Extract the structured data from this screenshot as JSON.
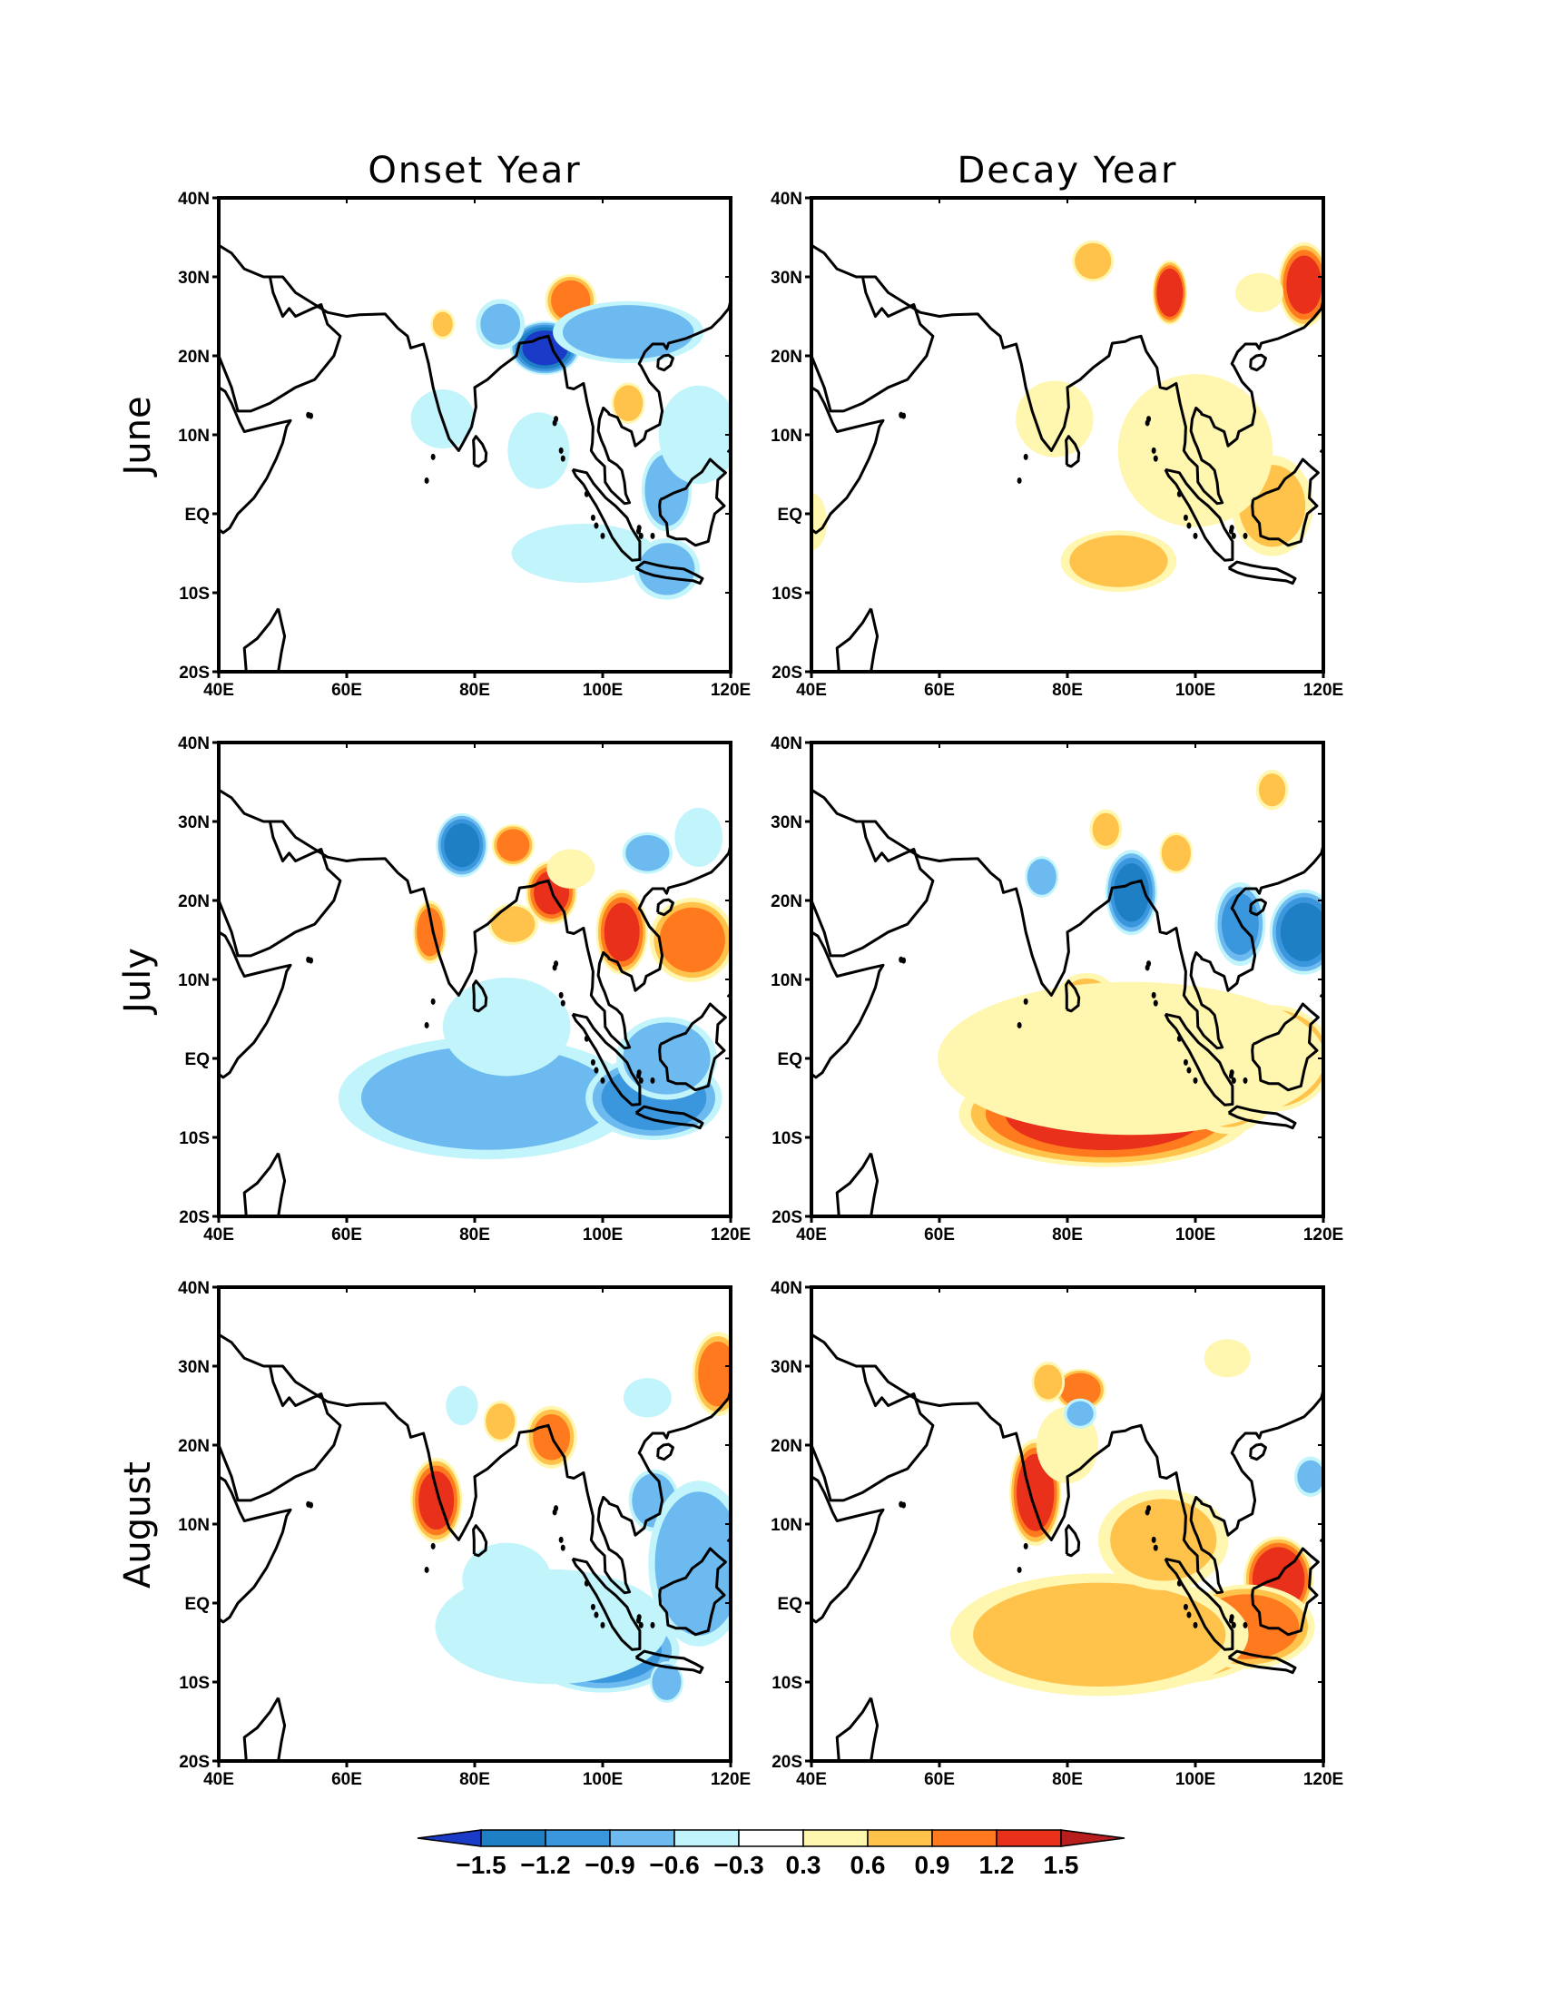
{
  "columns": [
    "Onset Year",
    "Decay Year"
  ],
  "rows": [
    "June",
    "July",
    "August"
  ],
  "lat_ticks": [
    "40N",
    "30N",
    "20N",
    "10N",
    "EQ",
    "10S",
    "20S"
  ],
  "lon_ticks": [
    "40E",
    "60E",
    "80E",
    "100E",
    "120E"
  ],
  "colorbar": {
    "levels": [
      "−1.5",
      "−1.2",
      "−0.9",
      "−0.6",
      "−0.3",
      "0.3",
      "0.6",
      "0.9",
      "1.2",
      "1.5"
    ],
    "colors": [
      "#1a3ac8",
      "#1e7fc4",
      "#3a96dd",
      "#6cbaf0",
      "#c2f4fb",
      "#ffffff",
      "#fff6b0",
      "#ffc24a",
      "#ff7a1e",
      "#e8301a",
      "#b81e1e"
    ]
  },
  "map": {
    "lon_range": [
      40,
      120
    ],
    "lat_range": [
      -20,
      40
    ],
    "anomalies": [
      {
        "panel": "onset-june",
        "blobs": [
          [
            95,
            27,
            3,
            2.5,
            1.0
          ],
          [
            91,
            21,
            4,
            2.5,
            -1.5
          ],
          [
            75,
            24,
            1.5,
            1.5,
            0.6
          ],
          [
            84,
            24,
            3,
            2.5,
            -0.6
          ],
          [
            104,
            23,
            9,
            3,
            -0.8
          ],
          [
            104,
            14,
            2,
            2,
            0.8
          ],
          [
            75,
            12,
            4,
            3,
            -0.5
          ],
          [
            90,
            8,
            4,
            4,
            -0.4
          ],
          [
            97,
            -5,
            9,
            3,
            -0.5
          ],
          [
            110,
            3,
            3,
            4,
            -0.8
          ],
          [
            110,
            -7,
            4,
            3,
            -0.7
          ],
          [
            115,
            10,
            5,
            5,
            -0.5
          ]
        ]
      },
      {
        "panel": "onset-july",
        "blobs": [
          [
            78,
            27,
            3,
            3,
            -1.2
          ],
          [
            86,
            27,
            2.5,
            2,
            1.0
          ],
          [
            73,
            16,
            2,
            3,
            1.0
          ],
          [
            92,
            21,
            3,
            3,
            1.2
          ],
          [
            86,
            17,
            3,
            2,
            0.8
          ],
          [
            103,
            16,
            3,
            4,
            1.2
          ],
          [
            114,
            15,
            5,
            4,
            1.0
          ],
          [
            107,
            26,
            3,
            2,
            -0.8
          ],
          [
            115,
            28,
            3,
            3,
            -0.5
          ],
          [
            82,
            -5,
            18,
            6,
            -0.7
          ],
          [
            85,
            4,
            8,
            5,
            -0.5
          ],
          [
            108,
            -5,
            8,
            4,
            -1.0
          ],
          [
            110,
            0,
            6,
            4,
            -0.8
          ],
          [
            95,
            24,
            3,
            2,
            0.5
          ]
        ]
      },
      {
        "panel": "onset-august",
        "blobs": [
          [
            74,
            13,
            3,
            4,
            1.2
          ],
          [
            92,
            21,
            3,
            3,
            0.9
          ],
          [
            84,
            23,
            2,
            2,
            0.8
          ],
          [
            78,
            25,
            2,
            2,
            -0.5
          ],
          [
            118,
            29,
            3,
            4,
            1.0
          ],
          [
            107,
            26,
            3,
            2,
            -0.5
          ],
          [
            108,
            13,
            3,
            3,
            -0.8
          ],
          [
            115,
            5,
            6,
            8,
            -0.8
          ],
          [
            100,
            -6,
            9,
            4,
            -1.0
          ],
          [
            110,
            -10,
            2,
            2,
            -0.8
          ],
          [
            92,
            -3,
            15,
            6,
            -0.4
          ],
          [
            85,
            3,
            6,
            4,
            -0.3
          ]
        ]
      },
      {
        "panel": "decay-june",
        "blobs": [
          [
            84,
            32,
            2.5,
            2,
            0.8
          ],
          [
            96,
            28,
            2,
            3,
            1.4
          ],
          [
            117,
            29,
            3,
            4,
            1.2
          ],
          [
            110,
            28,
            3,
            2,
            0.5
          ],
          [
            88,
            -6,
            7,
            3,
            0.7
          ],
          [
            112,
            1,
            5,
            5,
            0.6
          ],
          [
            100,
            8,
            10,
            8,
            0.4
          ],
          [
            78,
            12,
            5,
            4,
            0.4
          ],
          [
            40,
            -1,
            2,
            3,
            0.4
          ]
        ]
      },
      {
        "panel": "decay-july",
        "blobs": [
          [
            86,
            -7,
            17,
            5,
            1.2
          ],
          [
            112,
            0,
            7,
            5,
            1.2
          ],
          [
            105,
            -3,
            6,
            5,
            0.8
          ],
          [
            83,
            7,
            4,
            3,
            0.6
          ],
          [
            90,
            21,
            3,
            4,
            -1.2
          ],
          [
            107,
            17,
            3,
            4,
            -0.9
          ],
          [
            117,
            16,
            4,
            4,
            -1.2
          ],
          [
            76,
            23,
            2,
            2,
            -0.8
          ],
          [
            97,
            26,
            2,
            2,
            0.8
          ],
          [
            86,
            29,
            2,
            2,
            0.6
          ],
          [
            112,
            34,
            2,
            2,
            0.6
          ],
          [
            90,
            0,
            25,
            8,
            0.4
          ]
        ]
      },
      {
        "panel": "decay-august",
        "blobs": [
          [
            75,
            14,
            3,
            5,
            1.3
          ],
          [
            82,
            27,
            3,
            2,
            1.1
          ],
          [
            77,
            28,
            2,
            2,
            0.7
          ],
          [
            113,
            3,
            4,
            4,
            1.4
          ],
          [
            95,
            -5,
            12,
            4,
            1.0
          ],
          [
            108,
            -3,
            8,
            4,
            1.0
          ],
          [
            85,
            -4,
            18,
            6,
            0.7
          ],
          [
            95,
            8,
            8,
            5,
            0.6
          ],
          [
            80,
            20,
            4,
            4,
            0.4
          ],
          [
            82,
            24,
            2,
            1.5,
            -0.6
          ],
          [
            118,
            16,
            2,
            2,
            -0.6
          ],
          [
            105,
            31,
            3,
            2,
            0.4
          ]
        ]
      }
    ]
  }
}
